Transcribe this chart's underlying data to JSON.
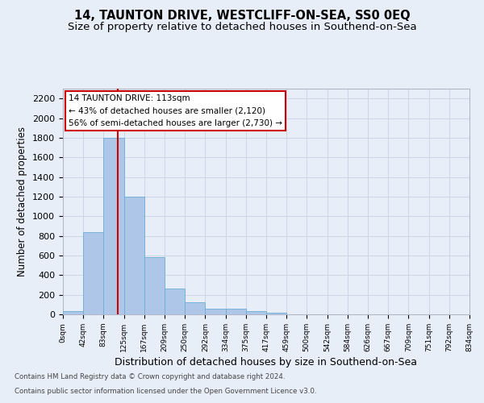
{
  "title": "14, TAUNTON DRIVE, WESTCLIFF-ON-SEA, SS0 0EQ",
  "subtitle": "Size of property relative to detached houses in Southend-on-Sea",
  "xlabel": "Distribution of detached houses by size in Southend-on-Sea",
  "ylabel": "Number of detached properties",
  "footer_line1": "Contains HM Land Registry data © Crown copyright and database right 2024.",
  "footer_line2": "Contains public sector information licensed under the Open Government Licence v3.0.",
  "annotation_title": "14 TAUNTON DRIVE: 113sqm",
  "annotation_line2": "← 43% of detached houses are smaller (2,120)",
  "annotation_line3": "56% of semi-detached houses are larger (2,730) →",
  "property_size": 113,
  "bin_edges": [
    0,
    42,
    83,
    125,
    167,
    209,
    250,
    292,
    334,
    375,
    417,
    459,
    500,
    542,
    584,
    626,
    667,
    709,
    751,
    792,
    834
  ],
  "bar_heights": [
    30,
    840,
    1800,
    1200,
    580,
    260,
    120,
    55,
    55,
    30,
    15,
    0,
    0,
    0,
    0,
    0,
    0,
    0,
    0,
    0
  ],
  "bar_color": "#aec6e8",
  "bar_edge_color": "#6aaed6",
  "vline_color": "#cc0000",
  "vline_x": 113,
  "ylim": [
    0,
    2300
  ],
  "yticks": [
    0,
    200,
    400,
    600,
    800,
    1000,
    1200,
    1400,
    1600,
    1800,
    2000,
    2200
  ],
  "grid_color": "#ccd5e8",
  "bg_color": "#e8eef8",
  "annotation_box_color": "#ffffff",
  "annotation_box_edge": "#cc0000",
  "title_fontsize": 10.5,
  "subtitle_fontsize": 9.5
}
